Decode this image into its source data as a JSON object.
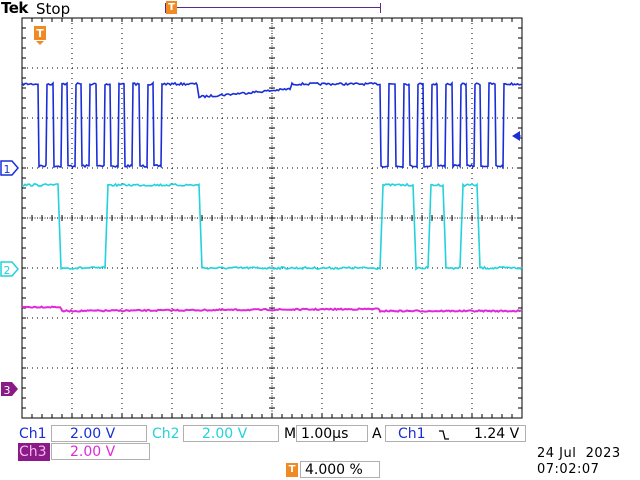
{
  "header": {
    "brand": "Tek",
    "run_state": "Stop"
  },
  "colors": {
    "ch1": "#1a2ed8",
    "ch2": "#22d2dc",
    "ch3": "#e02ad8",
    "trigger": "#f08a24",
    "graticule": "#000000"
  },
  "channel_markers": {
    "ch1": "1",
    "ch2": "2",
    "ch3": "3",
    "trigger": "T"
  },
  "readouts": {
    "ch1_label": "Ch1",
    "ch1_scale": "2.00 V",
    "ch2_label": "Ch2",
    "ch2_scale": "2.00 V",
    "ch3_label": "Ch3",
    "ch3_scale": "2.00 V",
    "timebase_label": "M",
    "timebase": "1.00µs",
    "trigger_label": "A",
    "trigger_source": "Ch1",
    "trigger_slope_icon": "falling-edge",
    "trigger_slope": "⽕",
    "trigger_level": "1.24 V",
    "trigger_position": "4.000 %",
    "date": "24 Jul  2023",
    "time": "07:02:07"
  }
}
